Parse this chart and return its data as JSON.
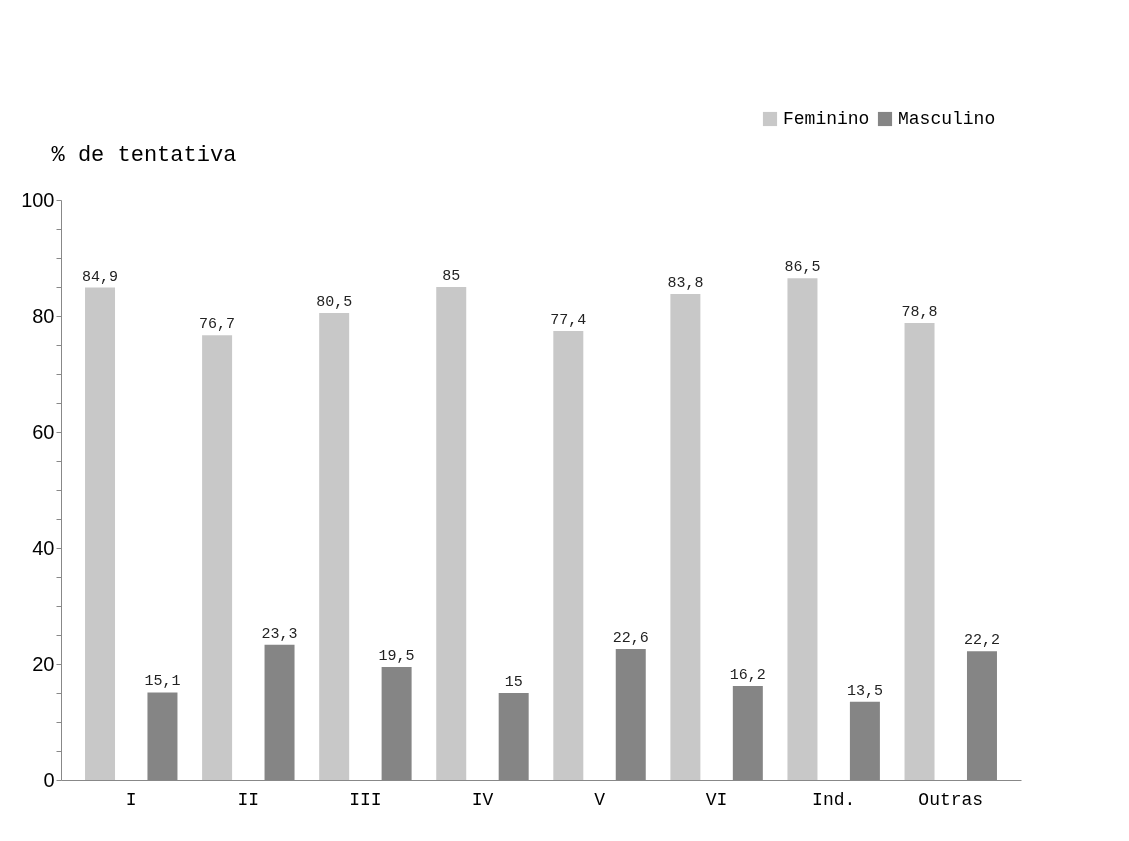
{
  "chart_data": {
    "type": "bar",
    "ylabel": "% de tentativa",
    "categories": [
      "I",
      "II",
      "III",
      "IV",
      "V",
      "VI",
      "Ind.",
      "Outras"
    ],
    "series": [
      {
        "name": "Feminino",
        "color": "#c8c8c8",
        "values": [
          84.9,
          76.7,
          80.5,
          85,
          77.4,
          83.8,
          86.5,
          78.8
        ],
        "value_labels": [
          "84,9",
          "76,7",
          "80,5",
          "85",
          "77,4",
          "83,8",
          "86,5",
          "78,8"
        ]
      },
      {
        "name": "Masculino",
        "color": "#858585",
        "values": [
          15.1,
          23.3,
          19.5,
          15,
          22.6,
          16.2,
          13.5,
          22.2
        ],
        "value_labels": [
          "15,1",
          "23,3",
          "19,5",
          "15",
          "22,6",
          "16,2",
          "13,5",
          "22,2"
        ]
      }
    ],
    "ylim": [
      0,
      100
    ],
    "yticks": [
      0,
      {
        "value": 5,
        "label": null
      },
      {
        "value": 10,
        "label": null
      },
      {
        "value": 15,
        "label": null
      },
      20,
      {
        "value": 25,
        "label": null
      },
      {
        "value": 30,
        "label": null
      },
      {
        "value": 35,
        "label": null
      },
      40,
      {
        "value": 45,
        "label": null
      },
      {
        "value": 50,
        "label": null
      },
      {
        "value": 55,
        "label": null
      },
      60,
      {
        "value": 65,
        "label": null
      },
      {
        "value": 70,
        "label": null
      },
      {
        "value": 75,
        "label": null
      },
      80,
      {
        "value": 85,
        "label": null
      },
      {
        "value": 90,
        "label": null
      },
      {
        "value": 95,
        "label": null
      },
      100
    ],
    "legend": "top right",
    "grid": false
  }
}
